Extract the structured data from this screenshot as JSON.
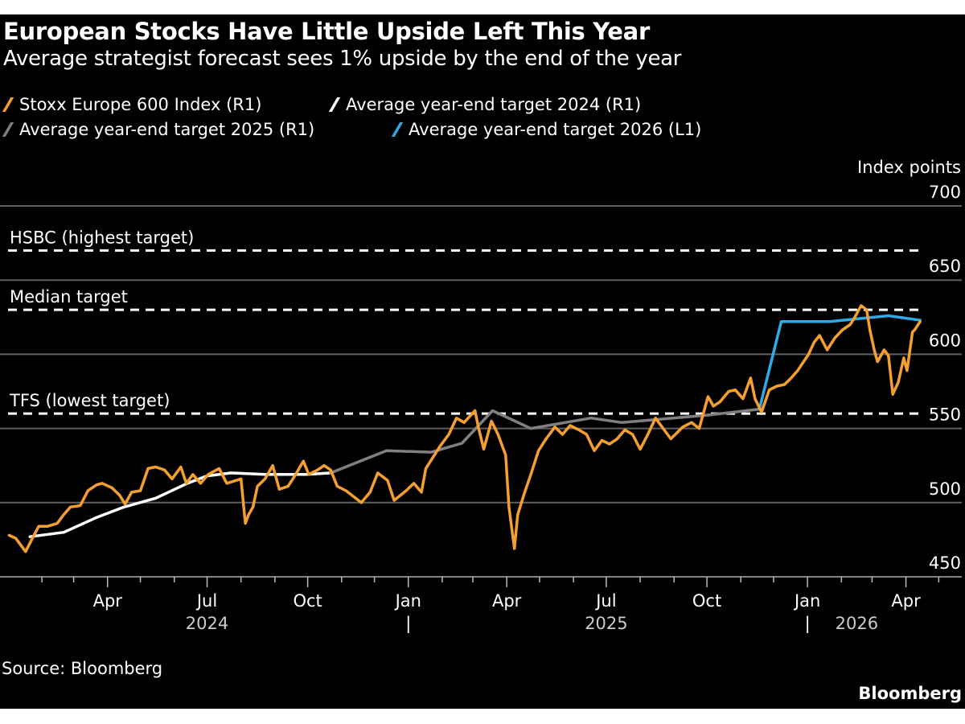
{
  "header": {
    "title": "European Stocks Have Little Upside Left This Year",
    "subtitle": "Average strategist forecast sees 1% upside by the end of the year"
  },
  "footer": {
    "source": "Source: Bloomberg",
    "logo": "Bloomberg"
  },
  "colors": {
    "background": "#000000",
    "stoxx": "#f59f2e",
    "target2024": "#ffffff",
    "target2025": "#808080",
    "target2026": "#2eaae6",
    "grid": "#606060"
  },
  "chart_data": {
    "type": "line",
    "title": "European Stocks Have Little Upside Left This Year",
    "subtitle": "Average strategist forecast sees 1% upside by the end of the year",
    "ylabel": "Index points",
    "ylim": [
      450,
      700
    ],
    "yticks": [
      "450",
      "500",
      "550",
      "600",
      "650",
      "700"
    ],
    "yaxis_side": "right",
    "grid": true,
    "legend_placement": "top",
    "xticks": [
      {
        "label": "Apr",
        "date": "2024-04-01"
      },
      {
        "label": "Jul",
        "date": "2024-07-01"
      },
      {
        "label": "Oct",
        "date": "2024-10-01"
      },
      {
        "label": "Jan",
        "date": "2025-01-01"
      },
      {
        "label": "Apr",
        "date": "2025-04-01"
      },
      {
        "label": "Jul",
        "date": "2025-07-01"
      },
      {
        "label": "Oct",
        "date": "2025-10-01"
      },
      {
        "label": "Jan",
        "date": "2026-01-01"
      },
      {
        "label": "Apr",
        "date": "2026-04-01"
      }
    ],
    "years": [
      {
        "label": "2024",
        "date": "2024-07-01"
      },
      {
        "label": "2025",
        "date": "2025-07-01"
      },
      {
        "label": "2026",
        "date": "2026-02-15"
      }
    ],
    "year_separator": "|",
    "reference_lines": [
      {
        "label": "HSBC (highest target)",
        "value": 670
      },
      {
        "label": "Median target",
        "value": 630
      },
      {
        "label": "TFS (lowest target)",
        "value": 560
      }
    ],
    "series": [
      {
        "name": "Stoxx Europe 600 Index (R1)",
        "color": "#f59f2e",
        "points": [
          [
            "2024-01-02",
            478
          ],
          [
            "2024-01-08",
            476
          ],
          [
            "2024-01-17",
            467
          ],
          [
            "2024-01-24",
            477
          ],
          [
            "2024-01-29",
            484
          ],
          [
            "2024-02-06",
            484
          ],
          [
            "2024-02-15",
            486
          ],
          [
            "2024-02-21",
            492
          ],
          [
            "2024-02-27",
            497
          ],
          [
            "2024-03-07",
            498
          ],
          [
            "2024-03-14",
            508
          ],
          [
            "2024-03-22",
            512
          ],
          [
            "2024-03-27",
            513
          ],
          [
            "2024-04-05",
            510
          ],
          [
            "2024-04-12",
            505
          ],
          [
            "2024-04-17",
            499
          ],
          [
            "2024-04-23",
            507
          ],
          [
            "2024-05-01",
            508
          ],
          [
            "2024-05-08",
            523
          ],
          [
            "2024-05-15",
            524
          ],
          [
            "2024-05-23",
            522
          ],
          [
            "2024-05-30",
            516
          ],
          [
            "2024-06-07",
            524
          ],
          [
            "2024-06-12",
            513
          ],
          [
            "2024-06-18",
            519
          ],
          [
            "2024-06-25",
            513
          ],
          [
            "2024-07-02",
            519
          ],
          [
            "2024-07-12",
            523
          ],
          [
            "2024-07-19",
            513
          ],
          [
            "2024-08-01",
            516
          ],
          [
            "2024-08-05",
            486
          ],
          [
            "2024-08-08",
            492
          ],
          [
            "2024-08-12",
            497
          ],
          [
            "2024-08-16",
            511
          ],
          [
            "2024-08-23",
            516
          ],
          [
            "2024-08-30",
            525
          ],
          [
            "2024-09-05",
            509
          ],
          [
            "2024-09-13",
            511
          ],
          [
            "2024-09-20",
            519
          ],
          [
            "2024-09-27",
            528
          ],
          [
            "2024-10-02",
            519
          ],
          [
            "2024-10-10",
            522
          ],
          [
            "2024-10-16",
            525
          ],
          [
            "2024-10-22",
            522
          ],
          [
            "2024-10-28",
            511
          ],
          [
            "2024-11-05",
            508
          ],
          [
            "2024-11-12",
            504
          ],
          [
            "2024-11-19",
            500
          ],
          [
            "2024-11-27",
            507
          ],
          [
            "2024-12-04",
            520
          ],
          [
            "2024-12-13",
            515
          ],
          [
            "2024-12-19",
            501.5
          ],
          [
            "2024-12-30",
            508
          ],
          [
            "2025-01-06",
            513
          ],
          [
            "2025-01-13",
            507
          ],
          [
            "2025-01-17",
            523
          ],
          [
            "2025-01-24",
            531
          ],
          [
            "2025-01-30",
            538
          ],
          [
            "2025-02-07",
            546
          ],
          [
            "2025-02-14",
            557
          ],
          [
            "2025-02-21",
            554
          ],
          [
            "2025-03-03",
            562
          ],
          [
            "2025-03-06",
            551
          ],
          [
            "2025-03-11",
            536
          ],
          [
            "2025-03-18",
            555
          ],
          [
            "2025-03-24",
            546
          ],
          [
            "2025-03-31",
            532
          ],
          [
            "2025-04-03",
            497
          ],
          [
            "2025-04-08",
            469
          ],
          [
            "2025-04-11",
            492
          ],
          [
            "2025-04-17",
            506
          ],
          [
            "2025-04-23",
            519
          ],
          [
            "2025-04-30",
            535
          ],
          [
            "2025-05-07",
            543
          ],
          [
            "2025-05-15",
            551
          ],
          [
            "2025-05-22",
            546
          ],
          [
            "2025-05-29",
            552
          ],
          [
            "2025-06-06",
            549
          ],
          [
            "2025-06-13",
            546
          ],
          [
            "2025-06-20",
            535
          ],
          [
            "2025-06-27",
            542
          ],
          [
            "2025-07-04",
            539.5
          ],
          [
            "2025-07-11",
            543
          ],
          [
            "2025-07-18",
            549
          ],
          [
            "2025-07-25",
            546
          ],
          [
            "2025-08-01",
            536
          ],
          [
            "2025-08-08",
            546
          ],
          [
            "2025-08-15",
            557
          ],
          [
            "2025-08-22",
            550
          ],
          [
            "2025-08-29",
            543
          ],
          [
            "2025-09-09",
            551
          ],
          [
            "2025-09-17",
            554
          ],
          [
            "2025-09-24",
            550
          ],
          [
            "2025-10-02",
            571.5
          ],
          [
            "2025-10-07",
            565
          ],
          [
            "2025-10-13",
            568
          ],
          [
            "2025-10-21",
            575
          ],
          [
            "2025-10-27",
            576
          ],
          [
            "2025-11-03",
            570
          ],
          [
            "2025-11-10",
            584
          ],
          [
            "2025-11-14",
            570
          ],
          [
            "2025-11-20",
            561
          ],
          [
            "2025-11-27",
            576
          ],
          [
            "2025-12-04",
            578.5
          ],
          [
            "2025-12-11",
            579.6
          ],
          [
            "2025-12-17",
            584
          ],
          [
            "2025-12-23",
            589
          ],
          [
            "2026-01-02",
            600
          ],
          [
            "2026-01-07",
            608
          ],
          [
            "2026-01-12",
            612.7
          ],
          [
            "2026-01-19",
            603
          ],
          [
            "2026-01-26",
            611
          ],
          [
            "2026-02-02",
            616.5
          ],
          [
            "2026-02-09",
            620
          ],
          [
            "2026-02-13",
            624.6
          ],
          [
            "2026-02-19",
            632.8
          ],
          [
            "2026-02-24",
            630
          ],
          [
            "2026-02-27",
            616.5
          ],
          [
            "2026-03-03",
            603
          ],
          [
            "2026-03-06",
            595
          ],
          [
            "2026-03-12",
            603
          ],
          [
            "2026-03-16",
            599
          ],
          [
            "2026-03-20",
            573
          ],
          [
            "2026-03-25",
            581
          ],
          [
            "2026-03-30",
            597.5
          ],
          [
            "2026-04-02",
            589
          ],
          [
            "2026-04-07",
            615
          ],
          [
            "2026-04-09",
            616.5
          ],
          [
            "2026-04-14",
            622
          ]
        ]
      },
      {
        "name": "Average year-end target 2024 (R1)",
        "color": "#ffffff",
        "points": [
          [
            "2024-01-21",
            477
          ],
          [
            "2024-02-21",
            480
          ],
          [
            "2024-03-22",
            490
          ],
          [
            "2024-04-16",
            497
          ],
          [
            "2024-05-15",
            503
          ],
          [
            "2024-06-13",
            513
          ],
          [
            "2024-07-01",
            518
          ],
          [
            "2024-07-23",
            520
          ],
          [
            "2024-08-23",
            519
          ],
          [
            "2024-09-29",
            519
          ],
          [
            "2024-10-22",
            520
          ]
        ]
      },
      {
        "name": "Average year-end target 2025 (R1)",
        "color": "#808080",
        "points": [
          [
            "2024-10-22",
            520
          ],
          [
            "2024-12-12",
            535
          ],
          [
            "2025-01-22",
            534
          ],
          [
            "2025-02-19",
            540
          ],
          [
            "2025-03-19",
            562
          ],
          [
            "2025-04-23",
            550
          ],
          [
            "2025-06-17",
            557
          ],
          [
            "2025-07-15",
            554
          ],
          [
            "2025-08-16",
            556
          ],
          [
            "2025-10-02",
            559
          ],
          [
            "2025-11-18",
            563
          ]
        ]
      },
      {
        "name": "Average year-end target 2026 (L1)",
        "color": "#2eaae6",
        "points": [
          [
            "2025-11-18",
            563
          ],
          [
            "2025-12-08",
            622
          ],
          [
            "2026-01-21",
            622
          ],
          [
            "2026-03-16",
            626
          ],
          [
            "2026-04-14",
            623
          ]
        ]
      }
    ]
  }
}
